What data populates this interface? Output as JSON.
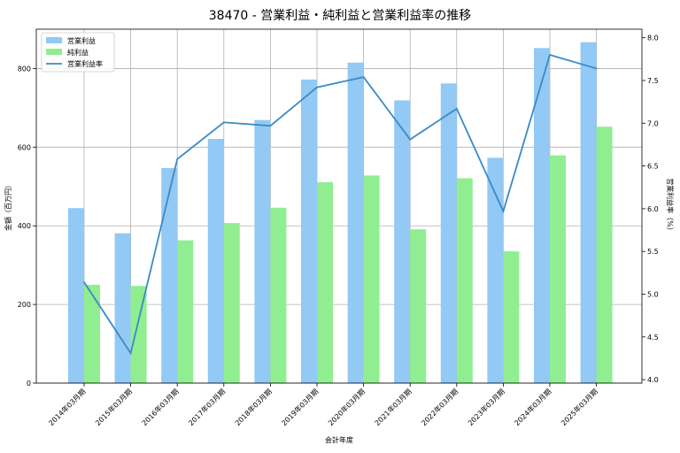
{
  "chart_data": {
    "type": "bar",
    "title": "38470 - 営業利益・純利益と営業利益率の推移",
    "xlabel": "会計年度",
    "ylabel": "金額（百万円）",
    "y2label": "営業利益率（%）",
    "categories": [
      "2014年03月期",
      "2015年03月期",
      "2016年03月期",
      "2017年03月期",
      "2018年03月期",
      "2019年03月期",
      "2020年03月期",
      "2021年03月期",
      "2022年03月期",
      "2023年03月期",
      "2024年03月期",
      "2025年03月期"
    ],
    "series": [
      {
        "name": "営業利益",
        "type": "bar",
        "color": "#92c9f5",
        "values": [
          445,
          381,
          547,
          621,
          669,
          772,
          815,
          719,
          762,
          573,
          852,
          867
        ]
      },
      {
        "name": "純利益",
        "type": "bar",
        "color": "#90ee90",
        "values": [
          250,
          247,
          363,
          407,
          446,
          511,
          528,
          391,
          521,
          335,
          579,
          652
        ]
      },
      {
        "name": "営業利益率",
        "type": "line",
        "axis": "right",
        "color": "#3a8ac4",
        "values": [
          5.14,
          4.31,
          6.58,
          7.01,
          6.97,
          7.42,
          7.54,
          6.81,
          7.17,
          5.97,
          7.8,
          7.64
        ]
      }
    ],
    "ylim": [
      0,
      900
    ],
    "yticks": [
      "0",
      "200",
      "400",
      "600",
      "800"
    ],
    "y2lim": [
      3.96,
      8.1
    ],
    "y2ticks": [
      "4.0",
      "4.5",
      "5.0",
      "5.5",
      "6.0",
      "6.5",
      "7.0",
      "7.5",
      "8.0"
    ],
    "grid": true,
    "legend_position": "top-left"
  }
}
